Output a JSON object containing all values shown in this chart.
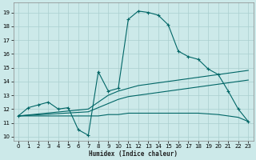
{
  "background_color": "#cce9e9",
  "grid_color": "#aacfcf",
  "line_color": "#006666",
  "xlabel": "Humidex (Indice chaleur)",
  "xlim": [
    -0.5,
    23.5
  ],
  "ylim": [
    9.7,
    19.7
  ],
  "xticks": [
    0,
    1,
    2,
    3,
    4,
    5,
    6,
    7,
    8,
    9,
    10,
    11,
    12,
    13,
    14,
    15,
    16,
    17,
    18,
    19,
    20,
    21,
    22,
    23
  ],
  "yticks": [
    10,
    11,
    12,
    13,
    14,
    15,
    16,
    17,
    18,
    19
  ],
  "curve_x": [
    0,
    1,
    2,
    3,
    4,
    5,
    6,
    7,
    8,
    9,
    10,
    11,
    12,
    13,
    14,
    15,
    16,
    17,
    18,
    19,
    20,
    21,
    22,
    23
  ],
  "curve_y": [
    11.5,
    12.1,
    12.3,
    12.5,
    12.0,
    12.1,
    10.5,
    10.1,
    14.7,
    13.3,
    13.5,
    18.5,
    19.1,
    19.0,
    18.8,
    18.1,
    16.2,
    15.8,
    15.6,
    14.9,
    14.5,
    13.3,
    12.0,
    11.1
  ],
  "line_upper_x": [
    0,
    7,
    8,
    9,
    10,
    11,
    12,
    13,
    14,
    15,
    16,
    17,
    18,
    19,
    20,
    21,
    22,
    23
  ],
  "line_upper_y": [
    11.5,
    12.0,
    12.5,
    13.0,
    13.3,
    13.5,
    13.7,
    13.8,
    13.9,
    14.0,
    14.1,
    14.2,
    14.3,
    14.4,
    14.5,
    14.6,
    14.7,
    14.8
  ],
  "line_mid_x": [
    0,
    7,
    8,
    9,
    10,
    11,
    12,
    13,
    14,
    15,
    16,
    17,
    18,
    19,
    20,
    21,
    22,
    23
  ],
  "line_mid_y": [
    11.5,
    11.8,
    12.1,
    12.4,
    12.7,
    12.9,
    13.0,
    13.1,
    13.2,
    13.3,
    13.4,
    13.5,
    13.6,
    13.7,
    13.8,
    13.9,
    14.0,
    14.1
  ],
  "line_flat_x": [
    0,
    1,
    2,
    3,
    4,
    5,
    6,
    7,
    8,
    9,
    10,
    11,
    12,
    13,
    14,
    15,
    16,
    17,
    18,
    19,
    20,
    21,
    22,
    23
  ],
  "line_flat_y": [
    11.5,
    11.5,
    11.5,
    11.5,
    11.5,
    11.5,
    11.5,
    11.5,
    11.5,
    11.6,
    11.6,
    11.7,
    11.7,
    11.7,
    11.7,
    11.7,
    11.7,
    11.7,
    11.7,
    11.65,
    11.6,
    11.5,
    11.4,
    11.1
  ]
}
